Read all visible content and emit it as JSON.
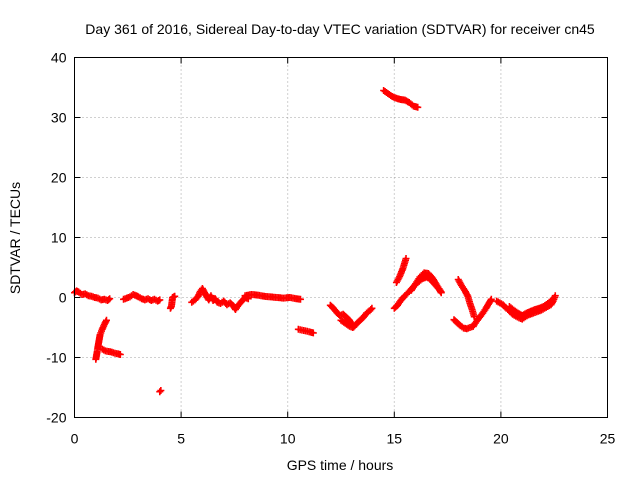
{
  "chart_data": {
    "type": "scatter",
    "title": "Day 361 of 2016, Sidereal Day-to-day VTEC variation (SDTVAR) for receiver cn45",
    "xlabel": "GPS time / hours",
    "ylabel": "SDTVAR / TECUs",
    "xlim": [
      0,
      25
    ],
    "ylim": [
      -20,
      40
    ],
    "xticks": [
      0,
      5,
      10,
      15,
      20,
      25
    ],
    "xtick_labels": [
      "0",
      "5",
      "10",
      "15",
      "20",
      "25"
    ],
    "yticks": [
      -20,
      -10,
      0,
      10,
      20,
      30,
      40
    ],
    "ytick_labels": [
      "-20",
      "-10",
      "0",
      "10",
      "20",
      "30",
      "40"
    ],
    "grid": true,
    "marker": "+",
    "color": "#ff0000",
    "series": [
      {
        "name": "SDTVAR",
        "segments": [
          [
            [
              0.0,
              0.8
            ],
            [
              0.1,
              1.1
            ],
            [
              0.2,
              0.9
            ],
            [
              0.35,
              0.5
            ],
            [
              0.5,
              0.6
            ],
            [
              0.65,
              0.3
            ],
            [
              0.8,
              0.2
            ],
            [
              0.95,
              0.0
            ],
            [
              1.1,
              -0.1
            ],
            [
              1.25,
              -0.4
            ],
            [
              1.4,
              -0.3
            ],
            [
              1.55,
              -0.5
            ],
            [
              1.65,
              -0.2
            ]
          ],
          [
            [
              1.0,
              -10.3
            ],
            [
              1.05,
              -9.3
            ],
            [
              1.1,
              -8.2
            ],
            [
              1.15,
              -7.2
            ],
            [
              1.2,
              -6.2
            ],
            [
              1.3,
              -5.3
            ],
            [
              1.4,
              -4.5
            ],
            [
              1.5,
              -3.8
            ]
          ],
          [
            [
              1.3,
              -8.6
            ],
            [
              1.45,
              -8.9
            ],
            [
              1.6,
              -9.0
            ],
            [
              1.75,
              -9.1
            ],
            [
              1.9,
              -9.3
            ],
            [
              2.05,
              -9.4
            ],
            [
              2.15,
              -9.5
            ]
          ],
          [
            [
              2.3,
              -0.3
            ],
            [
              2.45,
              -0.1
            ],
            [
              2.6,
              0.1
            ],
            [
              2.75,
              0.5
            ],
            [
              2.9,
              0.3
            ],
            [
              3.0,
              0.1
            ],
            [
              3.15,
              -0.2
            ],
            [
              3.3,
              -0.4
            ],
            [
              3.45,
              -0.2
            ],
            [
              3.6,
              -0.5
            ],
            [
              3.75,
              -0.3
            ],
            [
              3.9,
              -0.6
            ],
            [
              4.0,
              -0.4
            ]
          ],
          [
            [
              4.0,
              -15.7
            ],
            [
              4.05,
              -15.5
            ]
          ],
          [
            [
              4.5,
              -1.8
            ],
            [
              4.55,
              -1.4
            ],
            [
              4.6,
              0.0
            ],
            [
              4.7,
              0.2
            ]
          ],
          [
            [
              5.5,
              -0.8
            ],
            [
              5.65,
              -0.4
            ],
            [
              5.8,
              0.2
            ],
            [
              5.9,
              1.0
            ],
            [
              6.0,
              1.5
            ],
            [
              6.1,
              0.8
            ],
            [
              6.2,
              0.2
            ],
            [
              6.3,
              -0.4
            ],
            [
              6.4,
              0.3
            ],
            [
              6.5,
              -0.5
            ],
            [
              6.6,
              -0.2
            ],
            [
              6.7,
              -0.8
            ],
            [
              6.85,
              -1.0
            ],
            [
              7.0,
              -0.6
            ],
            [
              7.15,
              -1.2
            ],
            [
              7.3,
              -0.9
            ],
            [
              7.45,
              -1.4
            ],
            [
              7.55,
              -2.0
            ],
            [
              7.7,
              -1.2
            ],
            [
              7.85,
              -0.6
            ],
            [
              8.0,
              0.0
            ],
            [
              8.15,
              -0.2
            ]
          ],
          [
            [
              8.0,
              0.3
            ],
            [
              8.3,
              0.5
            ],
            [
              8.6,
              0.4
            ],
            [
              8.9,
              0.2
            ],
            [
              9.2,
              0.1
            ],
            [
              9.5,
              0.0
            ],
            [
              9.8,
              -0.1
            ],
            [
              10.1,
              0.0
            ],
            [
              10.4,
              -0.2
            ],
            [
              10.6,
              -0.3
            ]
          ],
          [
            [
              10.5,
              -5.3
            ],
            [
              10.75,
              -5.5
            ],
            [
              11.0,
              -5.7
            ],
            [
              11.2,
              -5.9
            ]
          ],
          [
            [
              12.0,
              -1.3
            ],
            [
              12.15,
              -1.8
            ],
            [
              12.3,
              -2.5
            ],
            [
              12.45,
              -3.0
            ],
            [
              12.6,
              -2.8
            ],
            [
              12.75,
              -3.3
            ],
            [
              12.9,
              -3.8
            ],
            [
              13.0,
              -4.5
            ],
            [
              13.1,
              -4.9
            ],
            [
              13.25,
              -4.3
            ],
            [
              13.4,
              -3.8
            ],
            [
              13.55,
              -3.3
            ],
            [
              13.7,
              -2.6
            ],
            [
              13.85,
              -2.2
            ],
            [
              13.95,
              -1.8
            ]
          ],
          [
            [
              12.5,
              -3.8
            ],
            [
              12.7,
              -4.3
            ],
            [
              12.9,
              -4.8
            ],
            [
              13.05,
              -5.0
            ]
          ],
          [
            [
              14.5,
              34.5
            ],
            [
              14.7,
              34.0
            ],
            [
              14.9,
              33.5
            ],
            [
              15.1,
              33.2
            ],
            [
              15.3,
              33.0
            ],
            [
              15.5,
              32.9
            ],
            [
              15.7,
              32.5
            ],
            [
              15.9,
              31.9
            ],
            [
              16.1,
              31.7
            ]
          ],
          [
            [
              15.0,
              -1.8
            ],
            [
              15.15,
              -1.3
            ],
            [
              15.3,
              -0.5
            ],
            [
              15.5,
              0.3
            ],
            [
              15.7,
              1.0
            ],
            [
              15.9,
              1.8
            ],
            [
              16.1,
              2.5
            ],
            [
              16.3,
              3.1
            ],
            [
              16.5,
              3.4
            ],
            [
              16.65,
              3.2
            ],
            [
              16.8,
              2.6
            ],
            [
              16.95,
              2.0
            ],
            [
              17.1,
              1.4
            ],
            [
              17.2,
              0.8
            ]
          ],
          [
            [
              15.1,
              2.5
            ],
            [
              15.25,
              3.5
            ],
            [
              15.4,
              4.8
            ],
            [
              15.55,
              6.5
            ]
          ],
          [
            [
              15.8,
              1.2
            ],
            [
              16.0,
              2.3
            ],
            [
              16.2,
              3.4
            ],
            [
              16.4,
              4.1
            ],
            [
              16.6,
              4.0
            ],
            [
              16.8,
              3.2
            ],
            [
              17.0,
              2.0
            ],
            [
              17.2,
              0.9
            ]
          ],
          [
            [
              17.8,
              -3.7
            ],
            [
              17.95,
              -4.2
            ],
            [
              18.1,
              -4.7
            ],
            [
              18.25,
              -5.1
            ],
            [
              18.4,
              -5.2
            ],
            [
              18.55,
              -5.0
            ],
            [
              18.7,
              -4.8
            ]
          ],
          [
            [
              18.0,
              3.0
            ],
            [
              18.15,
              2.0
            ],
            [
              18.3,
              1.2
            ],
            [
              18.45,
              0.2
            ],
            [
              18.55,
              -1.0
            ],
            [
              18.65,
              -2.0
            ],
            [
              18.75,
              -3.2
            ]
          ],
          [
            [
              18.7,
              -4.8
            ],
            [
              18.85,
              -4.0
            ],
            [
              19.0,
              -3.3
            ],
            [
              19.15,
              -2.6
            ],
            [
              19.3,
              -1.8
            ],
            [
              19.45,
              -0.9
            ],
            [
              19.55,
              -0.3
            ]
          ],
          [
            [
              19.8,
              -0.6
            ],
            [
              19.95,
              -0.9
            ],
            [
              20.1,
              -1.2
            ],
            [
              20.25,
              -1.8
            ],
            [
              20.4,
              -2.2
            ],
            [
              20.55,
              -2.8
            ],
            [
              20.7,
              -3.1
            ],
            [
              20.85,
              -3.4
            ],
            [
              21.0,
              -3.6
            ],
            [
              21.15,
              -3.2
            ],
            [
              21.3,
              -2.9
            ],
            [
              21.45,
              -2.7
            ],
            [
              21.6,
              -2.5
            ],
            [
              21.75,
              -2.3
            ],
            [
              21.9,
              -2.1
            ],
            [
              22.05,
              -1.8
            ],
            [
              22.2,
              -1.5
            ],
            [
              22.35,
              -1.2
            ],
            [
              22.45,
              -0.6
            ],
            [
              22.55,
              0.3
            ]
          ],
          [
            [
              20.4,
              -1.5
            ],
            [
              20.6,
              -2.1
            ],
            [
              20.8,
              -2.6
            ],
            [
              21.0,
              -3.0
            ],
            [
              21.2,
              -2.6
            ],
            [
              21.4,
              -2.3
            ],
            [
              21.6,
              -2.0
            ],
            [
              21.8,
              -1.8
            ],
            [
              22.0,
              -1.5
            ],
            [
              22.2,
              -1.0
            ],
            [
              22.4,
              -0.4
            ]
          ]
        ]
      }
    ]
  }
}
